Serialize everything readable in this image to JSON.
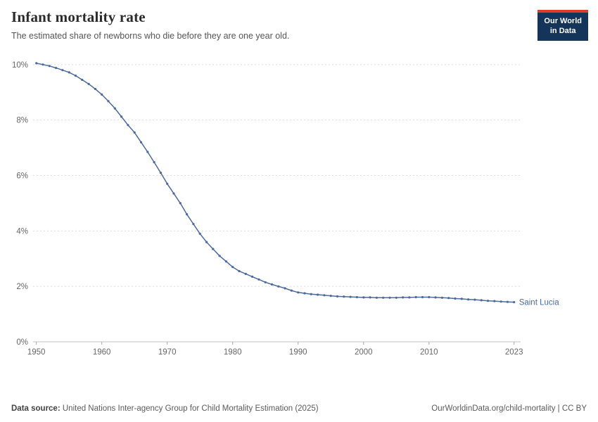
{
  "header": {
    "title": "Infant mortality rate",
    "subtitle": "The estimated share of newborns who die before they are one year old.",
    "logo_line1": "Our World",
    "logo_line2": "in Data"
  },
  "footer": {
    "source_label": "Data source:",
    "source_text": "United Nations Inter-agency Group for Child Mortality Estimation (2025)",
    "right_text": "OurWorldinData.org/child-mortality | CC BY"
  },
  "chart_data": {
    "type": "line",
    "title": "Infant mortality rate",
    "xlabel": "",
    "ylabel": "",
    "grid": "horizontal-dashed",
    "legend_position": "end-of-line-label",
    "xlim": [
      1949.5,
      2024
    ],
    "ylim": [
      0,
      10.3
    ],
    "x_ticks": [
      1950,
      1960,
      1970,
      1980,
      1990,
      2000,
      2010,
      2023
    ],
    "y_ticks": [
      0,
      2,
      4,
      6,
      8,
      10
    ],
    "y_tick_suffix": "%",
    "end_label": "Saint Lucia",
    "line_color": "#4C6A9C",
    "series": [
      {
        "name": "Saint Lucia",
        "color": "#4C6A9C",
        "x": [
          1950,
          1951,
          1952,
          1953,
          1954,
          1955,
          1956,
          1957,
          1958,
          1959,
          1960,
          1961,
          1962,
          1963,
          1964,
          1965,
          1966,
          1967,
          1968,
          1969,
          1970,
          1971,
          1972,
          1973,
          1974,
          1975,
          1976,
          1977,
          1978,
          1979,
          1980,
          1981,
          1982,
          1983,
          1984,
          1985,
          1986,
          1987,
          1988,
          1989,
          1990,
          1991,
          1992,
          1993,
          1994,
          1995,
          1996,
          1997,
          1998,
          1999,
          2000,
          2001,
          2002,
          2003,
          2004,
          2005,
          2006,
          2007,
          2008,
          2009,
          2010,
          2011,
          2012,
          2013,
          2014,
          2015,
          2016,
          2017,
          2018,
          2019,
          2020,
          2021,
          2022,
          2023
        ],
        "values": [
          10.05,
          10.0,
          9.95,
          9.88,
          9.8,
          9.72,
          9.6,
          9.45,
          9.3,
          9.12,
          8.92,
          8.68,
          8.42,
          8.12,
          7.82,
          7.55,
          7.2,
          6.85,
          6.48,
          6.1,
          5.7,
          5.35,
          5.0,
          4.6,
          4.25,
          3.9,
          3.6,
          3.35,
          3.1,
          2.9,
          2.7,
          2.55,
          2.45,
          2.35,
          2.25,
          2.15,
          2.07,
          2.0,
          1.93,
          1.85,
          1.78,
          1.75,
          1.72,
          1.7,
          1.68,
          1.66,
          1.64,
          1.63,
          1.62,
          1.61,
          1.6,
          1.6,
          1.59,
          1.59,
          1.59,
          1.59,
          1.6,
          1.6,
          1.61,
          1.61,
          1.61,
          1.6,
          1.59,
          1.58,
          1.56,
          1.55,
          1.53,
          1.52,
          1.5,
          1.48,
          1.47,
          1.45,
          1.44,
          1.43
        ]
      }
    ]
  }
}
